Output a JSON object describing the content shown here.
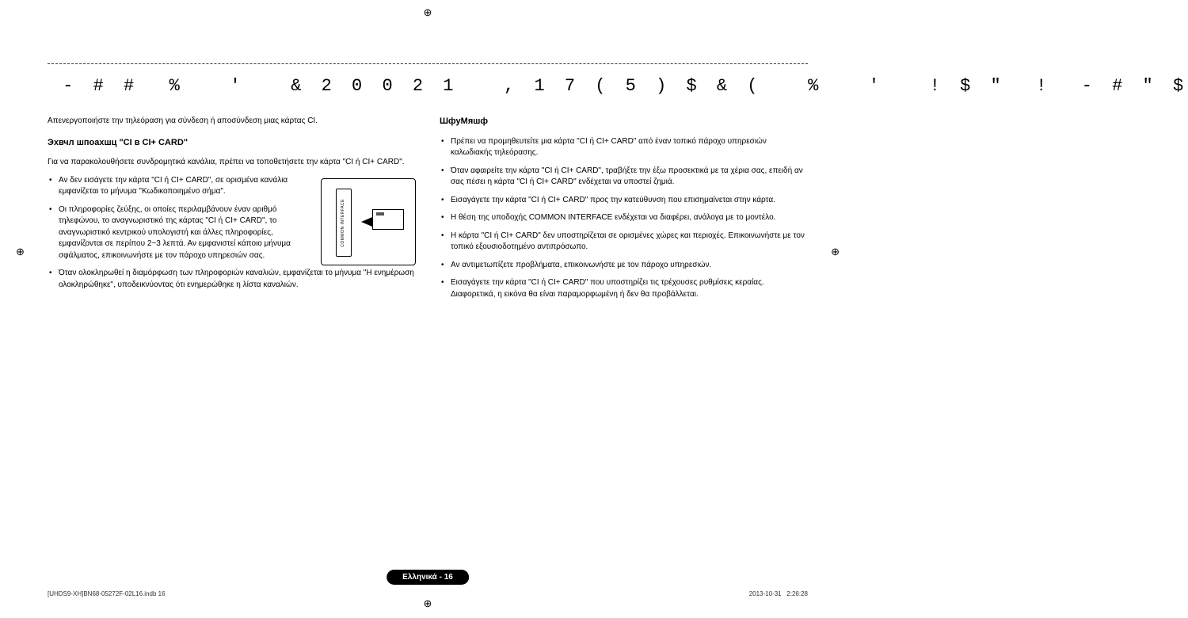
{
  "registration_mark": "⊕",
  "title": " - # #  %   '   & 2 0 0 2 1   , 1 7 ( 5 ) $ & (   %   '   ! $ \"  !  - # \" $",
  "col_left": {
    "intro": "Απενεργοποιήστε την τηλεόραση για σύνδεση ή αποσύνδεση μιας κάρτας CI.",
    "subhead": "Эхвчл шпоахшц \"CI в CI+ CARD\"",
    "desc": "Για να παρακολουθήσετε συνδρομητικά κανάλια, πρέπει να τοποθετήσετε την κάρτα \"CI ή CI+ CARD\".",
    "bullets_top": [
      "Αν δεν εισάγετε την κάρτα \"CI ή CI+ CARD\", σε ορισμένα κανάλια εμφανίζεται το μήνυμα \"Κωδικοποιημένο σήμα\".",
      "Οι πληροφορίες ζεύξης, οι οποίες περιλαμβάνουν έναν αριθμό τηλεφώνου, το αναγνωριστικό της κάρτας \"CI ή CI+ CARD\", το αναγνωριστικό κεντρικού υπολογιστή και άλλες πληροφορίες, εμφανίζονται σε περίπου 2~3 λεπτά. Αν εμφανιστεί κάποιο μήνυμα σφάλματος, επικοινωνήστε με τον πάροχο υπηρεσιών σας."
    ],
    "bullet_full": "Όταν ολοκληρωθεί η διαμόρφωση των πληροφοριών καναλιών, εμφανίζεται το μήνυμα \"Η ενημέρωση ολοκληρώθηκε\", υποδεικνύοντας ότι ενημερώθηκε η λίστα καναλιών.",
    "slot_label": "COMMON INTERFACE"
  },
  "col_right": {
    "subhead": "ШфуМяшф",
    "bullets": [
      "Πρέπει να προμηθευτείτε μια κάρτα \"CI ή CI+ CARD\" από έναν τοπικό πάροχο υπηρεσιών καλωδιακής τηλεόρασης.",
      "Όταν αφαιρείτε την κάρτα \"CI ή CI+ CARD\", τραβήξτε την έξω προσεκτικά με τα χέρια σας, επειδή αν σας πέσει η κάρτα \"CI ή CI+ CARD\" ενδέχεται να υποστεί ζημιά.",
      "Εισαγάγετε την κάρτα \"CI ή CI+ CARD\" προς την κατεύθυνση που επισημαίνεται στην κάρτα.",
      "Η θέση της υποδοχής COMMON INTERFACE ενδέχεται να διαφέρει, ανάλογα με το μοντέλο.",
      "Η κάρτα \"CI ή CI+ CARD\" δεν υποστηρίζεται σε ορισμένες χώρες και περιοχές. Επικοινωνήστε με τον τοπικό εξουσιοδοτημένο αντιπρόσωπο.",
      "Αν αντιμετωπίζετε προβλήματα, επικοινωνήστε με τον πάροχο υπηρεσιών.",
      "Εισαγάγετε την κάρτα \"CI ή CI+ CARD\" που υποστηρίζει τις τρέχουσες ρυθμίσεις κεραίας. Διαφορετικά, η εικόνα θα είναι παραμορφωμένη ή δεν θα προβάλλεται."
    ]
  },
  "footer": {
    "page_label": "Ελληνικά - 16",
    "left": "[UHDS9-XH]BN68-05272F-02L16.indb   16",
    "right_date": "2013-10-31",
    "right_time": "2:26:28"
  }
}
